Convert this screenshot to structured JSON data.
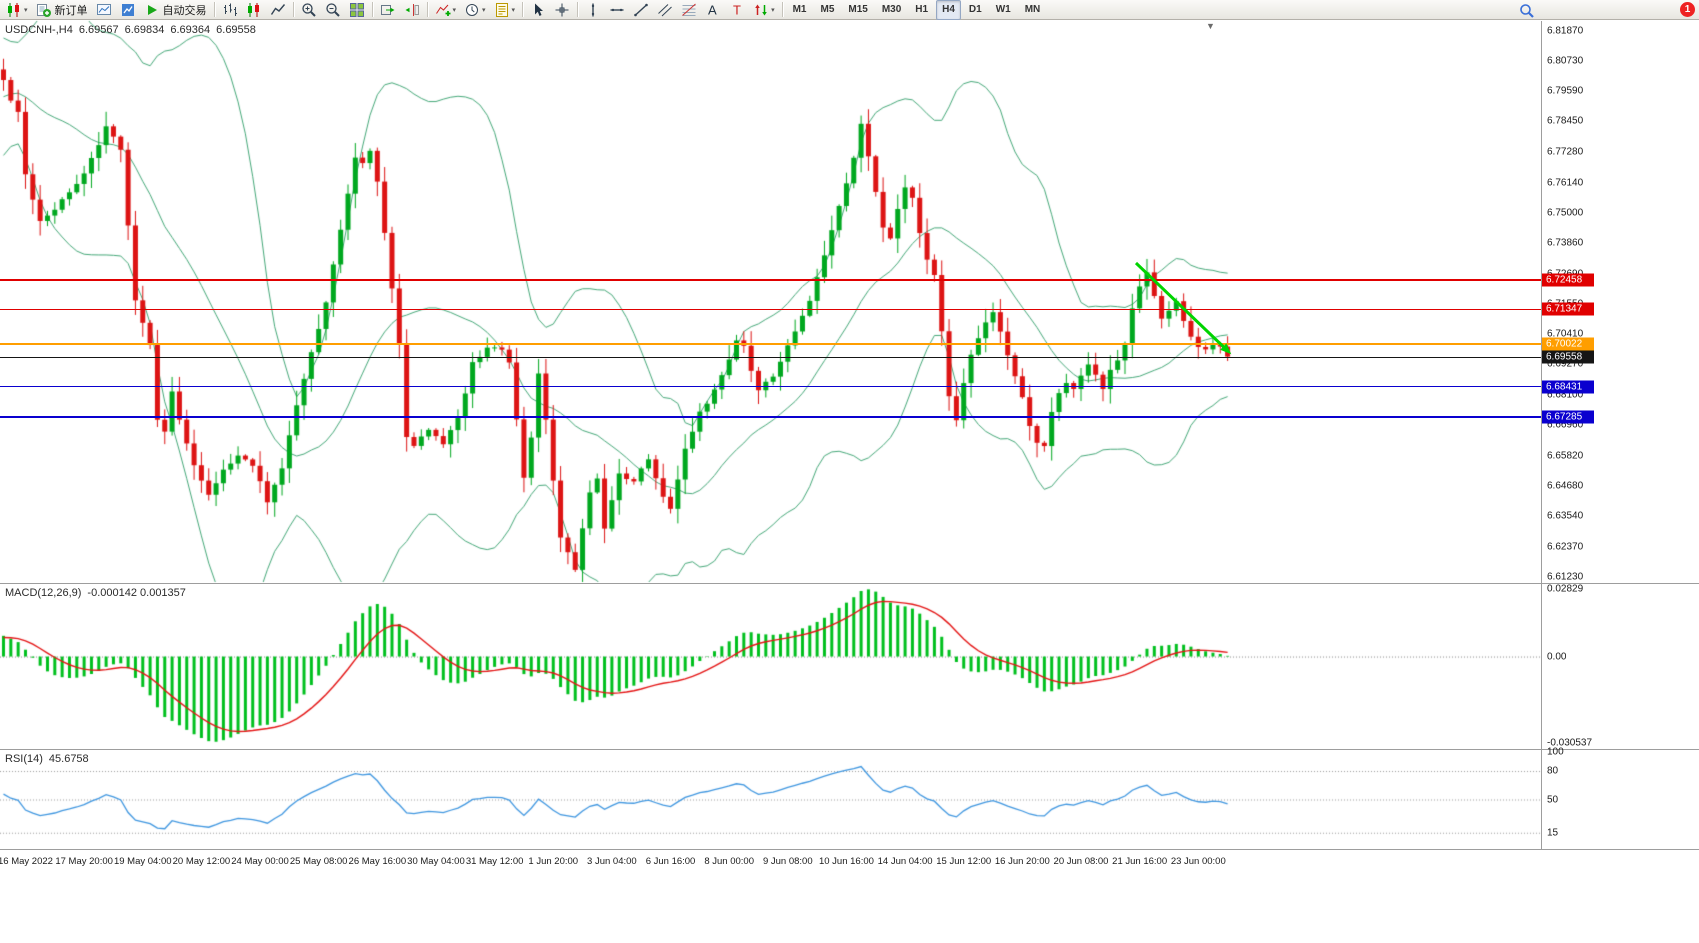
{
  "window": {
    "badge": "1"
  },
  "toolbar": {
    "items": [
      {
        "name": "new-chart-button",
        "icon": "candles",
        "caret": true
      },
      {
        "name": "new-order-button",
        "icon": "neworder",
        "label": "新订单"
      },
      {
        "name": "chart-window-button",
        "icon": "chartwin"
      },
      {
        "name": "market-watch-button",
        "icon": "marketwatch"
      },
      {
        "name": "autotrading-button",
        "icon": "play",
        "label": "自动交易"
      },
      {
        "sep": true
      },
      {
        "name": "bar-chart-button",
        "icon": "bars"
      },
      {
        "name": "candle-chart-button",
        "icon": "candles"
      },
      {
        "name": "line-chart-button",
        "icon": "linechart"
      },
      {
        "sep": true
      },
      {
        "name": "zoom-in-button",
        "icon": "zoomin"
      },
      {
        "name": "zoom-out-button",
        "icon": "zoomout"
      },
      {
        "name": "tile-windows-button",
        "icon": "tile"
      },
      {
        "sep": true
      },
      {
        "name": "auto-scroll-button",
        "icon": "autoscroll"
      },
      {
        "name": "chart-shift-button",
        "icon": "chartshift"
      },
      {
        "sep": true
      },
      {
        "name": "indicators-button",
        "icon": "addind",
        "caret": true
      },
      {
        "name": "periods-button",
        "icon": "clock",
        "caret": true
      },
      {
        "name": "templates-button",
        "icon": "template",
        "caret": true
      },
      {
        "sep": true
      },
      {
        "name": "cursor-button",
        "icon": "cursor"
      },
      {
        "name": "crosshair-button",
        "icon": "crosshair"
      },
      {
        "sep": true
      },
      {
        "name": "vertical-line-button",
        "icon": "vline"
      },
      {
        "name": "horizontal-line-button",
        "icon": "hline"
      },
      {
        "name": "trendline-button",
        "icon": "trend"
      },
      {
        "name": "channel-button",
        "icon": "channel"
      },
      {
        "name": "fibonacci-button",
        "icon": "fibo"
      },
      {
        "name": "text-button",
        "icon": "texta"
      },
      {
        "name": "label-button",
        "icon": "labelt"
      },
      {
        "name": "arrows-button",
        "icon": "arrows",
        "caret": true
      },
      {
        "sep": true
      }
    ],
    "timeframes": [
      "M1",
      "M5",
      "M15",
      "M30",
      "H1",
      "H4",
      "D1",
      "W1",
      "MN"
    ],
    "active_timeframe": "H4"
  },
  "chart_meta": {
    "title": "USDCNH-,H4",
    "open": "6.69567",
    "high": "6.69834",
    "low": "6.69364",
    "close": "6.69558"
  },
  "macd_meta": {
    "label": "MACD(12,26,9)",
    "values": "-0.000142 0.001357",
    "scale_max": "0.02829",
    "scale_zero": "0.00",
    "scale_min": "-0.030537"
  },
  "rsi_meta": {
    "label": "RSI(14)",
    "value": "45.6758",
    "levels": [
      "100",
      "80",
      "50",
      "15"
    ]
  },
  "chart_data": {
    "type": "candlestick",
    "symbol": "USDCNH-",
    "timeframe": "H4",
    "bars_total": 168,
    "ylim": [
      6.6108,
      6.8225
    ],
    "current_ohlc": {
      "open": 6.69567,
      "high": 6.69834,
      "low": 6.69364,
      "close": 6.69558
    },
    "price_axis_labels": [
      "6.81870",
      "6.80730",
      "6.79590",
      "6.78450",
      "6.77280",
      "6.76140",
      "6.75000",
      "6.73860",
      "6.72690",
      "6.71550",
      "6.70410",
      "6.69270",
      "6.68100",
      "6.66960",
      "6.65820",
      "6.64680",
      "6.63540",
      "6.62370",
      "6.61230"
    ],
    "price_anchors": [
      [
        0,
        6.8
      ],
      [
        1,
        6.793
      ],
      [
        2,
        6.789
      ],
      [
        3,
        6.765
      ],
      [
        5,
        6.746
      ],
      [
        7,
        6.752
      ],
      [
        9,
        6.758
      ],
      [
        11,
        6.764
      ],
      [
        13,
        6.776
      ],
      [
        14,
        6.783
      ],
      [
        15,
        6.779
      ],
      [
        16,
        6.773
      ],
      [
        17,
        6.745
      ],
      [
        18,
        6.716
      ],
      [
        20,
        6.7
      ],
      [
        21,
        6.672
      ],
      [
        22,
        6.668
      ],
      [
        23,
        6.683
      ],
      [
        24,
        6.672
      ],
      [
        25,
        6.662
      ],
      [
        26,
        6.655
      ],
      [
        28,
        6.644
      ],
      [
        30,
        6.652
      ],
      [
        32,
        6.659
      ],
      [
        34,
        6.655
      ],
      [
        36,
        6.641
      ],
      [
        38,
        6.654
      ],
      [
        40,
        6.678
      ],
      [
        42,
        6.697
      ],
      [
        44,
        6.716
      ],
      [
        46,
        6.744
      ],
      [
        47,
        6.757
      ],
      [
        48,
        6.77
      ],
      [
        49,
        6.768
      ],
      [
        50,
        6.773
      ],
      [
        51,
        6.762
      ],
      [
        52,
        6.742
      ],
      [
        53,
        6.721
      ],
      [
        54,
        6.701
      ],
      [
        55,
        6.666
      ],
      [
        56,
        6.662
      ],
      [
        58,
        6.668
      ],
      [
        60,
        6.663
      ],
      [
        62,
        6.672
      ],
      [
        64,
        6.693
      ],
      [
        66,
        6.699
      ],
      [
        68,
        6.698
      ],
      [
        69,
        6.694
      ],
      [
        70,
        6.672
      ],
      [
        71,
        6.65
      ],
      [
        72,
        6.665
      ],
      [
        73,
        6.69
      ],
      [
        74,
        6.672
      ],
      [
        75,
        6.648
      ],
      [
        76,
        6.628
      ],
      [
        78,
        6.615
      ],
      [
        80,
        6.645
      ],
      [
        81,
        6.65
      ],
      [
        82,
        6.631
      ],
      [
        84,
        6.652
      ],
      [
        86,
        6.648
      ],
      [
        88,
        6.657
      ],
      [
        89,
        6.65
      ],
      [
        90,
        6.643
      ],
      [
        91,
        6.638
      ],
      [
        93,
        6.66
      ],
      [
        95,
        6.674
      ],
      [
        97,
        6.683
      ],
      [
        99,
        6.695
      ],
      [
        100,
        6.702
      ],
      [
        101,
        6.699
      ],
      [
        102,
        6.691
      ],
      [
        103,
        6.683
      ],
      [
        105,
        6.688
      ],
      [
        107,
        6.7
      ],
      [
        108,
        6.706
      ],
      [
        110,
        6.716
      ],
      [
        112,
        6.734
      ],
      [
        114,
        6.752
      ],
      [
        116,
        6.77
      ],
      [
        117,
        6.784
      ],
      [
        118,
        6.772
      ],
      [
        119,
        6.758
      ],
      [
        120,
        6.745
      ],
      [
        121,
        6.74
      ],
      [
        122,
        6.752
      ],
      [
        123,
        6.76
      ],
      [
        124,
        6.755
      ],
      [
        125,
        6.742
      ],
      [
        126,
        6.733
      ],
      [
        127,
        6.726
      ],
      [
        128,
        6.706
      ],
      [
        129,
        6.68
      ],
      [
        130,
        6.672
      ],
      [
        131,
        6.686
      ],
      [
        132,
        6.696
      ],
      [
        133,
        6.702
      ],
      [
        134,
        6.708
      ],
      [
        135,
        6.712
      ],
      [
        136,
        6.705
      ],
      [
        137,
        6.697
      ],
      [
        138,
        6.688
      ],
      [
        139,
        6.68
      ],
      [
        140,
        6.67
      ],
      [
        141,
        6.663
      ],
      [
        142,
        6.662
      ],
      [
        143,
        6.674
      ],
      [
        144,
        6.682
      ],
      [
        145,
        6.686
      ],
      [
        146,
        6.684
      ],
      [
        147,
        6.688
      ],
      [
        148,
        6.692
      ],
      [
        149,
        6.688
      ],
      [
        150,
        6.684
      ],
      [
        151,
        6.69
      ],
      [
        152,
        6.695
      ],
      [
        153,
        6.7
      ],
      [
        154,
        6.714
      ],
      [
        155,
        6.723
      ],
      [
        156,
        6.727
      ],
      [
        157,
        6.718
      ],
      [
        158,
        6.71
      ],
      [
        159,
        6.713
      ],
      [
        160,
        6.717
      ],
      [
        161,
        6.709
      ],
      [
        162,
        6.703
      ],
      [
        163,
        6.7
      ],
      [
        164,
        6.698
      ],
      [
        165,
        6.7
      ],
      [
        166,
        6.699
      ],
      [
        167,
        6.6956
      ]
    ],
    "hlines": [
      {
        "label": "6.72458",
        "price": 6.72458,
        "color": "#e00000",
        "width": 1.5
      },
      {
        "label": "6.71347",
        "price": 6.71347,
        "color": "#e00000",
        "width": 1.5
      },
      {
        "label": "6.70022",
        "price": 6.70022,
        "color": "#ff9e00",
        "width": 2
      },
      {
        "label": "6.68431",
        "price": 6.68431,
        "color": "#0a00cf",
        "width": 1.5
      },
      {
        "label": "6.67285",
        "price": 6.67285,
        "color": "#0a00cf",
        "width": 1.5
      }
    ],
    "bid_marker": {
      "label": "6.69558",
      "price": 6.69558,
      "color": "#151515"
    },
    "trend_arrow": {
      "from_bar": 154.5,
      "from_price": 6.731,
      "to_bar": 167.5,
      "to_price": 6.6965,
      "color": "#00d400"
    },
    "indicators": [
      {
        "type": "bollinger",
        "period": 20,
        "deviation": 2,
        "color": "#44a878"
      },
      {
        "type": "macd",
        "fast": 12,
        "slow": 26,
        "signal_period": 9,
        "current_macd": -0.000142,
        "current_signal": 0.001357,
        "scale": [
          -0.030537,
          0.02829
        ],
        "histogram_color": "#00c01e",
        "signal_color": "#e41414"
      },
      {
        "type": "rsi",
        "period": 14,
        "current": 45.6758,
        "levels": [
          15,
          50,
          80
        ],
        "color": "#3e96e0"
      }
    ],
    "candle_up_color": "#00a81f",
    "candle_down_color": "#dd1414",
    "time_labels": [
      "16 May 2022",
      "17 May 20:00",
      "19 May 04:00",
      "20 May 12:00",
      "24 May 00:00",
      "25 May 08:00",
      "26 May 16:00",
      "30 May 04:00",
      "31 May 12:00",
      "1 Jun 20:00",
      "3 Jun 04:00",
      "6 Jun 16:00",
      "8 Jun 00:00",
      "9 Jun 08:00",
      "10 Jun 16:00",
      "14 Jun 04:00",
      "15 Jun 12:00",
      "16 Jun 20:00",
      "20 Jun 08:00",
      "21 Jun 16:00",
      "23 Jun 00:00"
    ]
  }
}
